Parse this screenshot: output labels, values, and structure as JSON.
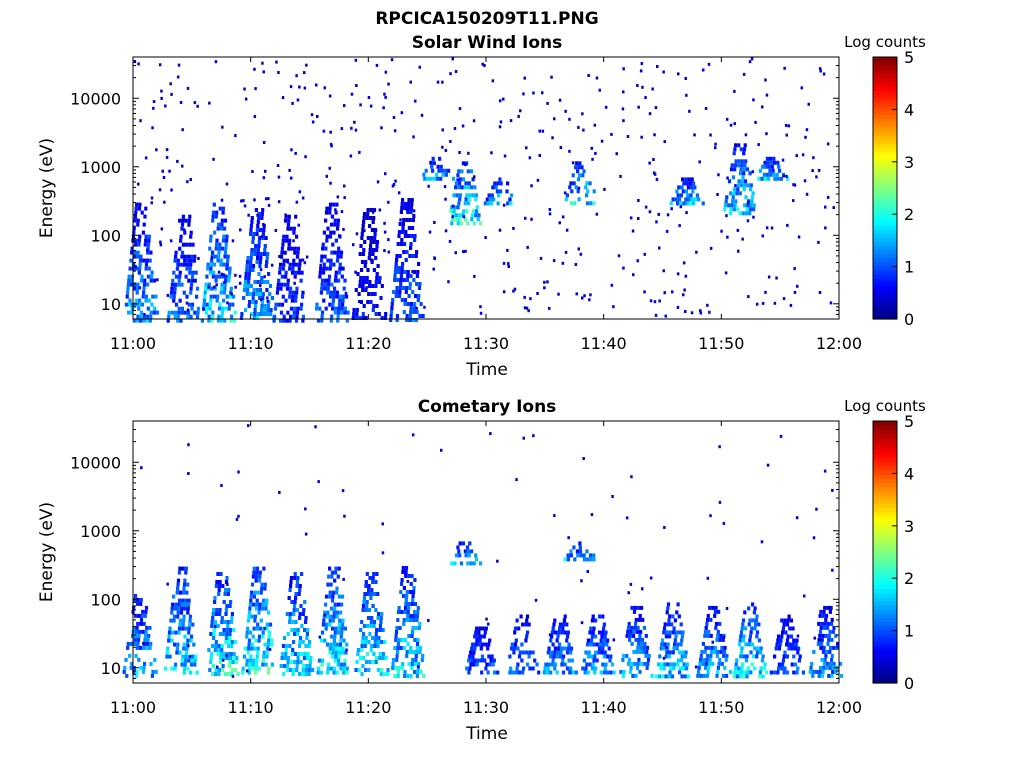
{
  "figure_title": "RPCICA150209T11.PNG",
  "colorbar": {
    "label": "Log counts",
    "range": [
      0,
      5
    ],
    "ticks": [
      "0",
      "1",
      "2",
      "3",
      "4",
      "5"
    ],
    "colormap": "jet"
  },
  "chart_data": [
    {
      "type": "heatmap",
      "title": "Solar Wind Ions",
      "xlabel": "Time",
      "ylabel": "Energy (eV)",
      "x_range": [
        "11:00",
        "12:00"
      ],
      "x_ticks": [
        "11:00",
        "11:10",
        "11:20",
        "11:30",
        "11:40",
        "11:50",
        "12:00"
      ],
      "y_scale": "log",
      "y_range": [
        6,
        40000
      ],
      "y_ticks": [
        10,
        100,
        1000,
        10000
      ],
      "y_tick_labels": [
        "10",
        "100",
        "1000",
        "10000"
      ],
      "z_label": "Log counts",
      "z_range": [
        0,
        5
      ],
      "events": [
        {
          "t": 0.6,
          "e_lo": 6,
          "e_hi": 300,
          "z": 1.8
        },
        {
          "t": 4.3,
          "e_lo": 6,
          "e_hi": 200,
          "z": 1.5
        },
        {
          "t": 7.2,
          "e_lo": 6,
          "e_hi": 300,
          "z": 2.2
        },
        {
          "t": 10.5,
          "e_lo": 6,
          "e_hi": 250,
          "z": 1.9
        },
        {
          "t": 13.3,
          "e_lo": 6,
          "e_hi": 200,
          "z": 1.2
        },
        {
          "t": 16.8,
          "e_lo": 6,
          "e_hi": 300,
          "z": 1.4
        },
        {
          "t": 20.0,
          "e_lo": 6,
          "e_hi": 250,
          "z": 1.0
        },
        {
          "t": 23.2,
          "e_lo": 6,
          "e_hi": 350,
          "z": 1.4
        },
        {
          "t": 25.8,
          "e_lo": 700,
          "e_hi": 1400,
          "z": 2.0
        },
        {
          "t": 28.1,
          "e_lo": 150,
          "e_hi": 1200,
          "z": 2.6
        },
        {
          "t": 31.2,
          "e_lo": 300,
          "e_hi": 700,
          "z": 2.1
        },
        {
          "t": 38.0,
          "e_lo": 300,
          "e_hi": 1200,
          "z": 2.3
        },
        {
          "t": 47.0,
          "e_lo": 300,
          "e_hi": 700,
          "z": 2.0
        },
        {
          "t": 51.5,
          "e_lo": 200,
          "e_hi": 2200,
          "z": 2.2
        },
        {
          "t": 54.2,
          "e_lo": 700,
          "e_hi": 1400,
          "z": 2.0
        }
      ]
    },
    {
      "type": "heatmap",
      "title": "Cometary Ions",
      "xlabel": "Time",
      "ylabel": "Energy (eV)",
      "x_range": [
        "11:00",
        "12:00"
      ],
      "x_ticks": [
        "11:00",
        "11:10",
        "11:20",
        "11:30",
        "11:40",
        "11:50",
        "12:00"
      ],
      "y_scale": "log",
      "y_range": [
        6,
        40000
      ],
      "y_ticks": [
        10,
        100,
        1000,
        10000
      ],
      "y_tick_labels": [
        "10",
        "100",
        "1000",
        "10000"
      ],
      "z_label": "Log counts",
      "z_range": [
        0,
        5
      ],
      "events": [
        {
          "t": 0.5,
          "e_lo": 8,
          "e_hi": 120,
          "z": 2.0
        },
        {
          "t": 4.0,
          "e_lo": 8,
          "e_hi": 300,
          "z": 2.2
        },
        {
          "t": 7.5,
          "e_lo": 8,
          "e_hi": 250,
          "z": 2.6
        },
        {
          "t": 10.6,
          "e_lo": 8,
          "e_hi": 300,
          "z": 2.7
        },
        {
          "t": 13.8,
          "e_lo": 8,
          "e_hi": 250,
          "z": 2.3
        },
        {
          "t": 17.0,
          "e_lo": 8,
          "e_hi": 300,
          "z": 2.4
        },
        {
          "t": 20.2,
          "e_lo": 8,
          "e_hi": 250,
          "z": 2.4
        },
        {
          "t": 23.3,
          "e_lo": 8,
          "e_hi": 350,
          "z": 2.2
        },
        {
          "t": 28.1,
          "e_lo": 350,
          "e_hi": 700,
          "z": 2.1
        },
        {
          "t": 29.5,
          "e_lo": 8,
          "e_hi": 40,
          "z": 1.5
        },
        {
          "t": 33.0,
          "e_lo": 8,
          "e_hi": 60,
          "z": 1.6
        },
        {
          "t": 36.2,
          "e_lo": 8,
          "e_hi": 60,
          "z": 1.8
        },
        {
          "t": 38.0,
          "e_lo": 400,
          "e_hi": 700,
          "z": 2.0
        },
        {
          "t": 39.4,
          "e_lo": 8,
          "e_hi": 60,
          "z": 1.9
        },
        {
          "t": 42.7,
          "e_lo": 8,
          "e_hi": 80,
          "z": 2.0
        },
        {
          "t": 45.8,
          "e_lo": 8,
          "e_hi": 90,
          "z": 2.1
        },
        {
          "t": 49.3,
          "e_lo": 8,
          "e_hi": 80,
          "z": 1.9
        },
        {
          "t": 52.4,
          "e_lo": 8,
          "e_hi": 90,
          "z": 2.3
        },
        {
          "t": 55.5,
          "e_lo": 8,
          "e_hi": 60,
          "z": 1.5
        },
        {
          "t": 58.8,
          "e_lo": 8,
          "e_hi": 80,
          "z": 1.8
        }
      ]
    }
  ]
}
